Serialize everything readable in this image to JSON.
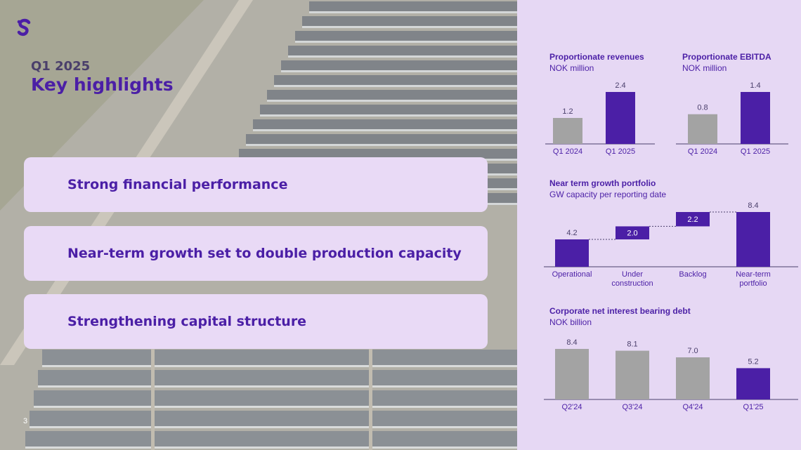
{
  "slide": {
    "subtitle": "Q1 2025",
    "title": "Key highlights",
    "page_number": "3"
  },
  "highlights": [
    "Strong financial performance",
    "Near-term growth set to double production capacity",
    "Strengthening capital structure"
  ],
  "colors": {
    "accent": "#4b1fa6",
    "grey_bar": "#a3a3a3",
    "panel_bg": "#e6d8f4"
  },
  "icons": {
    "logo": "brand-s-logo-icon"
  },
  "chart_data": [
    {
      "id": "revenues",
      "type": "bar",
      "title": "Proportionate revenues",
      "subtitle": "NOK million",
      "categories": [
        "Q1 2024",
        "Q1 2025"
      ],
      "values": [
        1.2,
        2.4
      ],
      "labels": [
        "1.2",
        "2.4"
      ],
      "highlight_index": 1,
      "ylim": [
        0,
        2.4
      ]
    },
    {
      "id": "ebitda",
      "type": "bar",
      "title": "Proportionate EBITDA",
      "subtitle": "NOK million",
      "categories": [
        "Q1 2024",
        "Q1 2025"
      ],
      "values": [
        0.8,
        1.4
      ],
      "labels": [
        "0.8",
        "1.4"
      ],
      "highlight_index": 1,
      "ylim": [
        0,
        1.4
      ]
    },
    {
      "id": "growth",
      "type": "bar",
      "subtype": "waterfall",
      "title": "Near term growth portfolio",
      "subtitle": "GW capacity per reporting date",
      "categories": [
        "Operational",
        "Under construction",
        "Backlog",
        "Near-term portfolio"
      ],
      "values": [
        4.2,
        2.0,
        2.2,
        8.4
      ],
      "labels": [
        "4.2",
        "2.0",
        "2.2",
        "8.4"
      ],
      "steps": [
        "base",
        "increment",
        "increment",
        "total"
      ],
      "ylim": [
        0,
        8.4
      ]
    },
    {
      "id": "debt",
      "type": "bar",
      "title": "Corporate net interest bearing debt",
      "subtitle": "NOK billion",
      "categories": [
        "Q2'24",
        "Q3'24",
        "Q4'24",
        "Q1'25"
      ],
      "values": [
        8.4,
        8.1,
        7.0,
        5.2
      ],
      "labels": [
        "8.4",
        "8.1",
        "7.0",
        "5.2"
      ],
      "highlight_index": 3,
      "ylim": [
        0,
        8.4
      ]
    }
  ]
}
